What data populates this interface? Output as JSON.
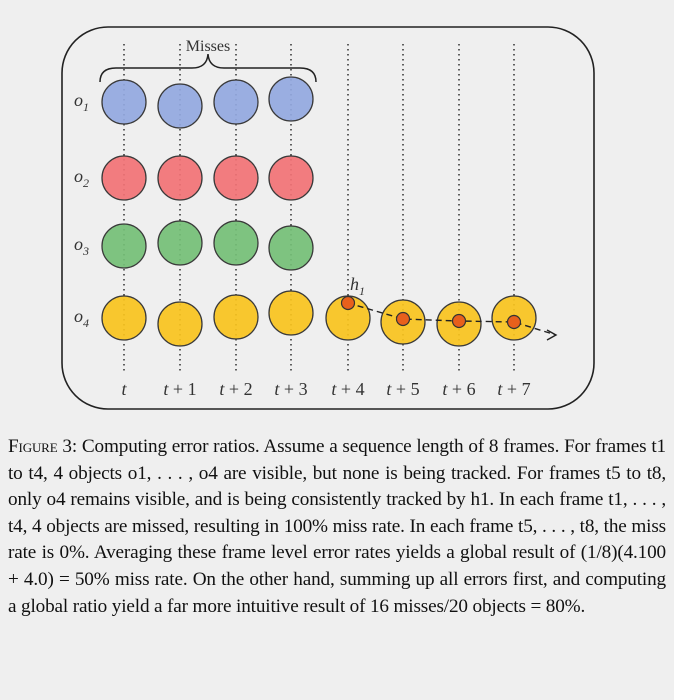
{
  "figure": {
    "brace_label": "Misses",
    "hypothesis_label": "h1",
    "object_labels": [
      "o1",
      "o2",
      "o3",
      "o4"
    ],
    "frame_labels": [
      "t",
      "t+1",
      "t+2",
      "t+3",
      "t+4",
      "t+5",
      "t+6",
      "t+7"
    ],
    "colors": {
      "o1": "#92a8df",
      "o2": "#f27275",
      "o3": "#74bf76",
      "o4": "#f8c31d",
      "hypothesis": "#e8601c",
      "outline": "#3a3a3a"
    },
    "visible_frames": {
      "o1": 4,
      "o2": 4,
      "o3": 4,
      "o4": 8
    },
    "tracked_frames": {
      "h1": [
        4,
        5,
        6,
        7
      ]
    }
  },
  "caption": {
    "label": "Figure 3:",
    "text": "Computing error ratios. Assume a sequence length of 8 frames. For frames t1 to t4, 4 objects o1, . . . , o4 are visible, but none is being tracked. For frames t5 to t8, only o4 remains visible, and is being consistently tracked by h1. In each frame t1, . . . , t4, 4 objects are missed, resulting in 100% miss rate. In each frame t5, . . . , t8, the miss rate is 0%. Averaging these frame level error rates yields a global result of (1/8)(4.100 + 4.0) = 50% miss rate. On the other hand, summing up all errors first, and computing a global ratio yield a far more intuitive result of 16 misses/20 objects = 80%."
  }
}
